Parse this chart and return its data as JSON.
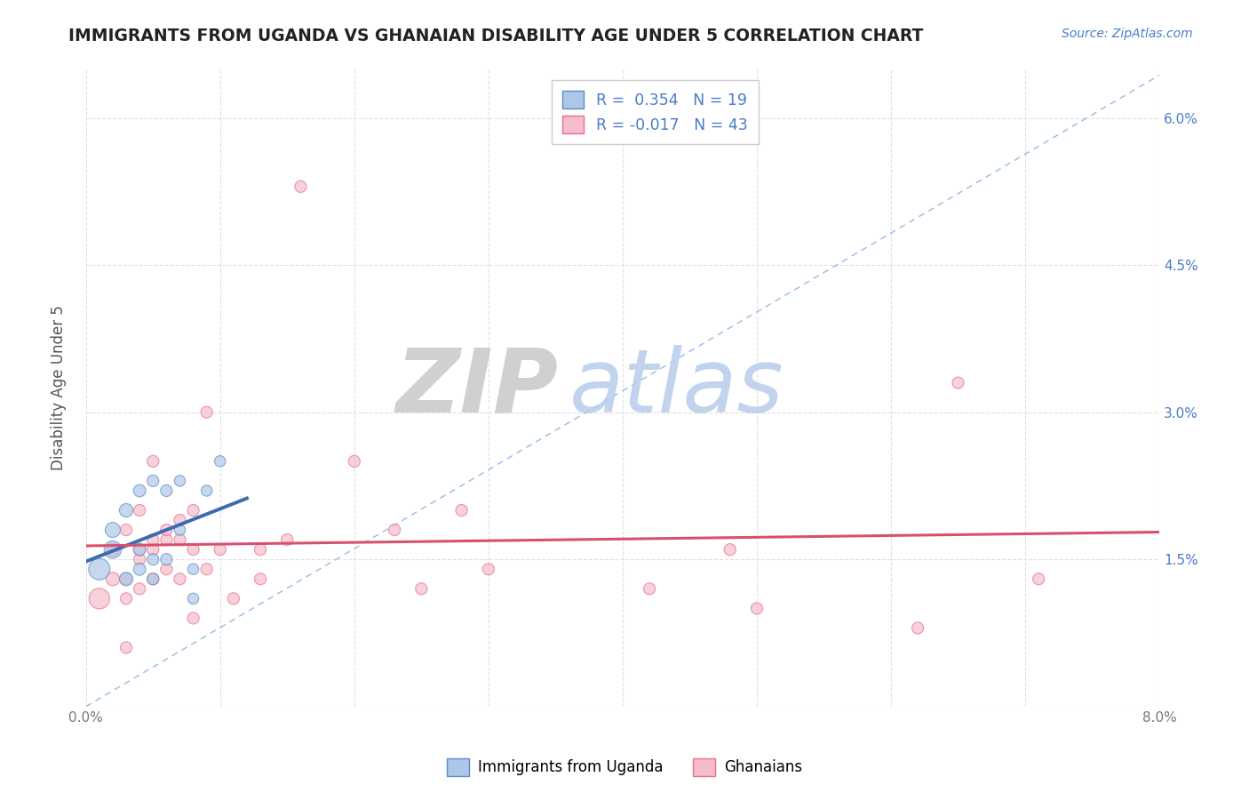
{
  "title": "IMMIGRANTS FROM UGANDA VS GHANAIAN DISABILITY AGE UNDER 5 CORRELATION CHART",
  "source": "Source: ZipAtlas.com",
  "ylabel": "Disability Age Under 5",
  "xmin": 0.0,
  "xmax": 0.08,
  "ymin": 0.0,
  "ymax": 0.065,
  "yticks": [
    0.0,
    0.015,
    0.03,
    0.045,
    0.06
  ],
  "ytick_labels": [
    "",
    "1.5%",
    "3.0%",
    "4.5%",
    "6.0%"
  ],
  "xticks": [
    0.0,
    0.01,
    0.02,
    0.03,
    0.04,
    0.05,
    0.06,
    0.07,
    0.08
  ],
  "xtick_labels": [
    "0.0%",
    "",
    "",
    "",
    "",
    "",
    "",
    "",
    "8.0%"
  ],
  "blue_scatter_x": [
    0.001,
    0.002,
    0.002,
    0.003,
    0.003,
    0.004,
    0.004,
    0.004,
    0.005,
    0.005,
    0.005,
    0.006,
    0.006,
    0.007,
    0.007,
    0.008,
    0.008,
    0.009,
    0.01
  ],
  "blue_scatter_y": [
    0.014,
    0.016,
    0.018,
    0.013,
    0.02,
    0.014,
    0.016,
    0.022,
    0.013,
    0.015,
    0.023,
    0.015,
    0.022,
    0.018,
    0.023,
    0.011,
    0.014,
    0.022,
    0.025
  ],
  "blue_sizes": [
    300,
    200,
    150,
    120,
    120,
    100,
    100,
    100,
    90,
    90,
    90,
    90,
    90,
    80,
    80,
    80,
    80,
    80,
    80
  ],
  "pink_scatter_x": [
    0.001,
    0.002,
    0.002,
    0.003,
    0.003,
    0.003,
    0.003,
    0.004,
    0.004,
    0.004,
    0.004,
    0.005,
    0.005,
    0.005,
    0.005,
    0.006,
    0.006,
    0.006,
    0.007,
    0.007,
    0.007,
    0.008,
    0.008,
    0.008,
    0.009,
    0.009,
    0.01,
    0.011,
    0.013,
    0.013,
    0.015,
    0.016,
    0.02,
    0.023,
    0.025,
    0.028,
    0.03,
    0.042,
    0.048,
    0.05,
    0.062,
    0.065,
    0.071
  ],
  "pink_scatter_y": [
    0.011,
    0.013,
    0.016,
    0.006,
    0.011,
    0.013,
    0.018,
    0.012,
    0.015,
    0.016,
    0.02,
    0.013,
    0.016,
    0.017,
    0.025,
    0.014,
    0.017,
    0.018,
    0.013,
    0.017,
    0.019,
    0.009,
    0.016,
    0.02,
    0.014,
    0.03,
    0.016,
    0.011,
    0.013,
    0.016,
    0.017,
    0.053,
    0.025,
    0.018,
    0.012,
    0.02,
    0.014,
    0.012,
    0.016,
    0.01,
    0.008,
    0.033,
    0.013
  ],
  "pink_sizes": [
    280,
    120,
    120,
    90,
    90,
    90,
    90,
    90,
    90,
    90,
    90,
    90,
    90,
    90,
    90,
    90,
    90,
    90,
    90,
    90,
    90,
    90,
    90,
    90,
    90,
    90,
    90,
    90,
    90,
    90,
    90,
    90,
    90,
    90,
    90,
    90,
    90,
    90,
    90,
    90,
    90,
    90,
    90
  ],
  "blue_color": "#aec6e8",
  "pink_color": "#f5bccb",
  "blue_edge_color": "#5b8ec4",
  "pink_edge_color": "#e8708e",
  "trend_blue_color": "#3c6ab0",
  "trend_pink_color": "#d94f6e",
  "trend_dashed_color": "#7aaadd",
  "watermark_zip_color": "#c8c8c8",
  "watermark_atlas_color": "#b8ccec",
  "background_color": "#ffffff",
  "grid_color": "#dddddd",
  "blue_line_y_intercept": 0.01,
  "blue_line_slope": 1.8,
  "pink_line_y_intercept": 0.016,
  "pink_line_slope": -0.05
}
